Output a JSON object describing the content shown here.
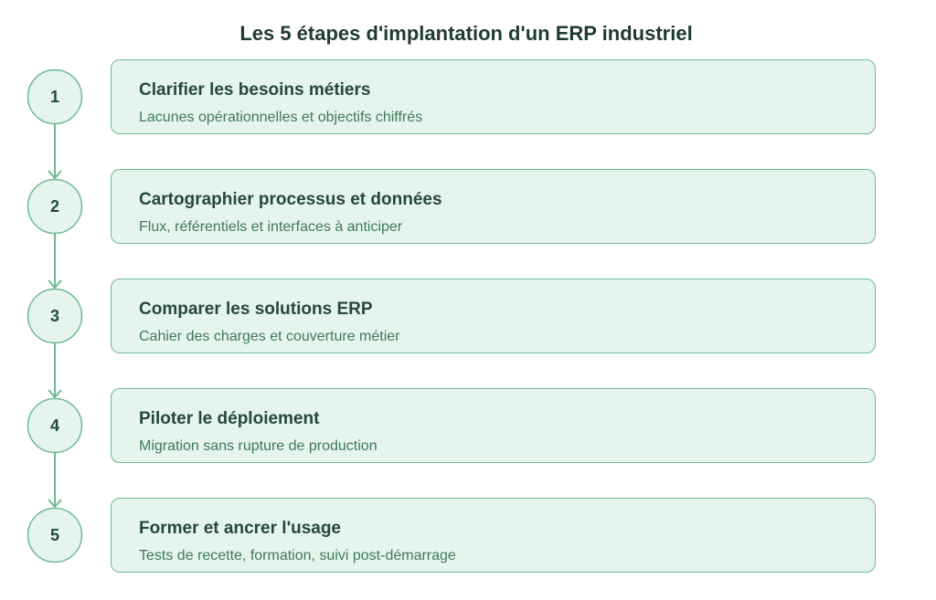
{
  "title": "Les 5 étapes d'implantation d'un ERP industriel",
  "colors": {
    "fill": "#e6f4ee",
    "stroke": "#6fb894",
    "title_text": "#24493a",
    "subtitle_text": "#3d7a5e"
  },
  "steps": [
    {
      "number": "1",
      "title": "Clarifier les besoins métiers",
      "subtitle": "Lacunes opérationnelles et objectifs chiffrés"
    },
    {
      "number": "2",
      "title": "Cartographier processus et données",
      "subtitle": "Flux, référentiels et interfaces à anticiper"
    },
    {
      "number": "3",
      "title": "Comparer les solutions ERP",
      "subtitle": "Cahier des charges et couverture métier"
    },
    {
      "number": "4",
      "title": "Piloter le déploiement",
      "subtitle": "Migration sans rupture de production"
    },
    {
      "number": "5",
      "title": "Former et ancrer l'usage",
      "subtitle": "Tests de recette, formation, suivi post-démarrage"
    }
  ]
}
